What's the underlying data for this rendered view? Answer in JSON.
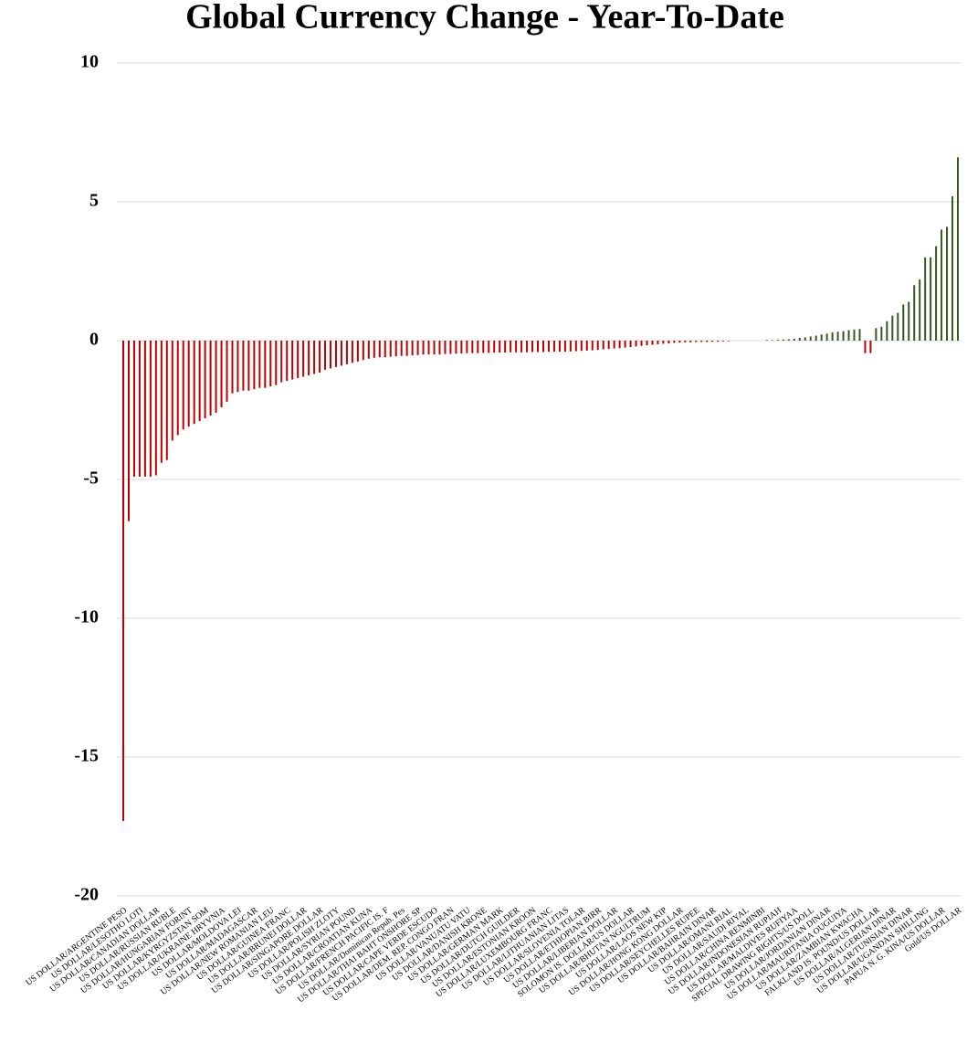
{
  "chart_data": {
    "type": "bar",
    "title": "Global Currency Change - Year-To-Date",
    "categories": [
      "US DOLLAR/ARGENTINE PESO",
      null,
      null,
      "US DOLLAR/LESOTHO LOTI",
      null,
      null,
      "US DOLLAR/CANADIAN DOLLAR",
      null,
      null,
      "US DOLLAR/RUSSIAN RUBLE",
      null,
      null,
      "US DOLLAR/HUNGARIAN FORINT",
      null,
      null,
      "US DOLLAR/KYRGYZSTAN SOM",
      null,
      null,
      "US DOLLAR/UKRAINE HRYVNIA",
      null,
      null,
      "US DOLLAR/MOLDOVA LEI",
      null,
      null,
      "US DOLLAR/MADAGASCAR",
      null,
      null,
      "US DOLLAR/NEW ROMANIAN LEU",
      null,
      null,
      "US DOLLAR/GUINEA FRANC",
      null,
      null,
      "US DOLLAR/BRUNEI DOLLAR",
      null,
      null,
      "US DOLLAR/SINGAPORE DOLLAR",
      null,
      null,
      "US DOLLAR/POLISH ZLOTY",
      null,
      null,
      "US DOLLAR/SYRIAN POUND",
      null,
      null,
      "US DOLLAR/CROATIAN KUNA",
      null,
      null,
      "US DOLLAR/FRENCH PACIFIC IS. F",
      null,
      null,
      "US DOLLAR/Dominican Repub. Pes",
      null,
      null,
      "US DOLLAR/THAI BAHT ONSHORE SP",
      null,
      null,
      "US DOLLAR/CAPE VERDE ESCUDO",
      null,
      null,
      "US DOLLAR/DEM. REP. CONGO FRAN",
      null,
      null,
      "US DOLLAR/VANUATU VATU",
      null,
      null,
      "US DOLLAR/DANISH KRONE",
      null,
      null,
      "US DOLLAR/GERMAN MARK",
      null,
      null,
      "US DOLLAR/DUTCH GUILDER",
      null,
      null,
      "US DOLLAR/ESTONIAN KROON",
      null,
      null,
      "US DOLLAR/LUXEMBOURG FRANC",
      null,
      null,
      "US DOLLAR/LITHUANIAN LITAS",
      null,
      null,
      "US DOLLAR/SLOVENIA TOLAR",
      null,
      null,
      "US DOLLAR/ETHIOPIAN BIRR",
      null,
      null,
      "US DOLLAR/LIBERIAN DOLLAR",
      null,
      null,
      "SOLOMON IS. DOLLAR/US DOLLAR",
      null,
      null,
      "US DOLLAR/BHUTAN NGULTRUM",
      null,
      null,
      "US DOLLAR/LAOS NEW KIP",
      null,
      null,
      "US DOLLAR/HONG KONG DOLLAR",
      null,
      null,
      "US DOLLAR/SEYCHELLES RUPEE",
      null,
      null,
      "US DOLLAR/BAHRAIN DINAR",
      null,
      null,
      "US DOLLAR/OMANI RIAL",
      null,
      null,
      "US DOLLAR/SAUDI RIYAL",
      null,
      null,
      "US DOLLAR/CHINA RENMINBI",
      null,
      null,
      "US DOLLAR/INDONESIAN RUPIAH",
      null,
      null,
      "US DOLLAR/MALDIVES RUFIYAA",
      null,
      null,
      "SPECIAL DRAWING RIGHTS/US DOLL",
      null,
      null,
      "US DOLLAR/JORDANIAN DINAR",
      null,
      null,
      "US DOLLAR/MAURITANIA OUGUIYA",
      null,
      null,
      "US DOLLAR/ZAMBIAN KWACHA",
      null,
      null,
      "FALKLAND IS. POUND/US DOLLAR",
      null,
      null,
      "US DOLLAR/ALGERIAN DINAR",
      null,
      null,
      "US DOLLAR/TUNISIAN DINAR",
      null,
      null,
      "US DOLLAR/UGANDAN SHILLING",
      null,
      null,
      "PAPUA N. G. KINA/US DOLLAR",
      null,
      null,
      "Gold/US DOLLAR"
    ],
    "values": [
      -17.3,
      -6.5,
      -4.9,
      -4.9,
      -4.9,
      -4.9,
      -4.85,
      -4.4,
      -4.3,
      -3.6,
      -3.4,
      -3.2,
      -3.1,
      -3.0,
      -2.9,
      -2.8,
      -2.7,
      -2.6,
      -2.4,
      -2.2,
      -1.9,
      -1.85,
      -1.8,
      -1.8,
      -1.75,
      -1.7,
      -1.7,
      -1.65,
      -1.6,
      -1.5,
      -1.45,
      -1.4,
      -1.35,
      -1.3,
      -1.25,
      -1.2,
      -1.15,
      -1.05,
      -1.0,
      -0.95,
      -0.9,
      -0.85,
      -0.8,
      -0.75,
      -0.7,
      -0.65,
      -0.62,
      -0.6,
      -0.6,
      -0.58,
      -0.57,
      -0.55,
      -0.55,
      -0.53,
      -0.52,
      -0.5,
      -0.5,
      -0.5,
      -0.5,
      -0.48,
      -0.48,
      -0.47,
      -0.46,
      -0.45,
      -0.45,
      -0.45,
      -0.44,
      -0.44,
      -0.43,
      -0.43,
      -0.43,
      -0.42,
      -0.42,
      -0.42,
      -0.42,
      -0.41,
      -0.41,
      -0.41,
      -0.4,
      -0.4,
      -0.4,
      -0.4,
      -0.39,
      -0.38,
      -0.37,
      -0.36,
      -0.35,
      -0.33,
      -0.31,
      -0.3,
      -0.28,
      -0.27,
      -0.25,
      -0.23,
      -0.21,
      -0.19,
      -0.17,
      -0.15,
      -0.13,
      -0.11,
      -0.1,
      -0.08,
      -0.07,
      -0.06,
      -0.06,
      -0.05,
      -0.05,
      -0.05,
      -0.04,
      -0.04,
      -0.03,
      -0.02,
      0,
      0,
      0,
      0,
      0,
      0,
      0.02,
      0.02,
      0.03,
      0.04,
      0.05,
      0.07,
      0.1,
      0.12,
      0.15,
      0.18,
      0.22,
      0.25,
      0.3,
      0.32,
      0.34,
      0.38,
      0.4,
      0.42,
      -0.45,
      -0.45,
      0.45,
      0.5,
      0.7,
      0.9,
      1.0,
      1.3,
      1.4,
      2.0,
      2.2,
      3.0,
      3.0,
      3.4,
      4.0,
      4.1,
      5.2,
      6.6
    ],
    "negative_color": "#c00000",
    "positive_color": "#375623",
    "ylim": [
      -20,
      10
    ],
    "yticks": [
      -20,
      -15,
      -10,
      -5,
      0,
      5,
      10
    ],
    "grid": true
  }
}
